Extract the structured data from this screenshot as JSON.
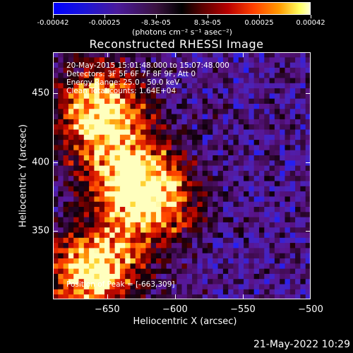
{
  "colorbar": {
    "ticks": [
      "-0.00042",
      "-0.00025",
      "-8.3e-05",
      "8.3e-05",
      "0.00025",
      "0.00042"
    ],
    "unit_label": "(photons cm⁻² s⁻¹ asec⁻²)"
  },
  "chart_data": {
    "type": "heatmap",
    "title": "Reconstructed RHESSI Image",
    "xlabel": "Heliocentric X (arcsec)",
    "ylabel": "Heliocentric Y (arcsec)",
    "xlim": [
      -690,
      -500
    ],
    "ylim": [
      300,
      480
    ],
    "x_ticks": [
      "-650",
      "-600",
      "-550",
      "-500"
    ],
    "y_ticks": [
      "350",
      "400",
      "450"
    ],
    "colorscale_range": [
      -0.00042,
      0.00042
    ],
    "info_lines": [
      "20-May-2015 15:01:48.000 to 15:07:48.000",
      "Detectors: 3F 5F 6F 7F 8F 9F, Att 0",
      "Energy Range: 25.0 - 50.0 keV",
      "Clean     Total counts: 1.64E+04"
    ],
    "peak_label": "Position of Peak = [-663,309]",
    "peak_position": [
      -663,
      309
    ],
    "bright_regions": [
      {
        "x": -655,
        "y": 438,
        "strength": 0.9
      },
      {
        "x": -617,
        "y": 372,
        "strength": 0.85
      },
      {
        "x": -660,
        "y": 320,
        "strength": 1.0
      },
      {
        "x": -640,
        "y": 395,
        "strength": 0.5
      }
    ]
  },
  "datestamp": "21-May-2022 10:29"
}
